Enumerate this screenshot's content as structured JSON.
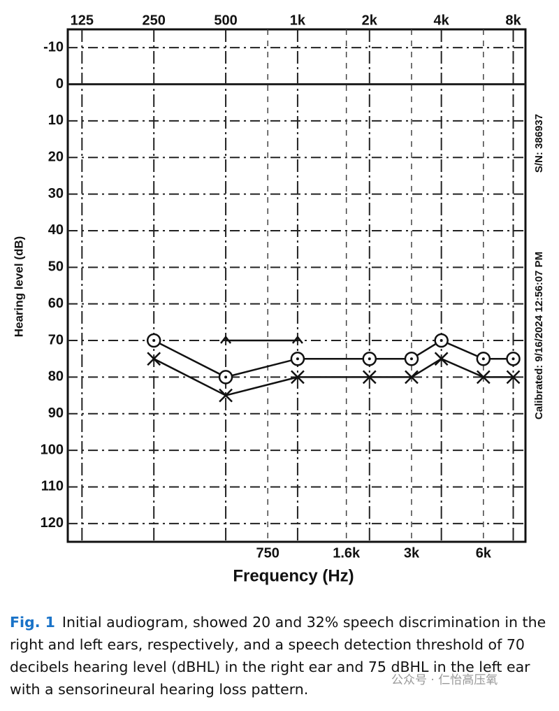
{
  "chart_data": {
    "type": "audiogram",
    "ylabel": "Hearing level (dB)",
    "xlabel": "Frequency (Hz)",
    "side_texts": [
      "S/N: 386937",
      "Calibrated: 9/16/2024 12:56:07 PM"
    ],
    "log_x": true,
    "y_inverted": true,
    "grid": true,
    "xlim": [
      109,
      9000
    ],
    "xticks_top": [
      125,
      250,
      500,
      {
        "value": 1000,
        "label": "1k"
      },
      {
        "value": 2000,
        "label": "2k"
      },
      {
        "value": 4000,
        "label": "4k"
      },
      {
        "value": 8000,
        "label": "8k"
      }
    ],
    "xticks_bottom": [
      750,
      {
        "value": 1600,
        "label": "1.6k"
      },
      {
        "value": 3000,
        "label": "3k"
      },
      {
        "value": 6000,
        "label": "6k"
      }
    ],
    "ylim": [
      -15,
      125
    ],
    "yticks": [
      -10,
      0,
      10,
      20,
      30,
      40,
      50,
      60,
      70,
      80,
      90,
      100,
      110,
      120
    ],
    "x": [
      250,
      500,
      1000,
      2000,
      3000,
      4000,
      6000,
      8000
    ],
    "series": [
      {
        "marker": "circle",
        "color": "#111111",
        "line": true,
        "values": [
          70,
          80,
          75,
          75,
          75,
          70,
          75,
          75
        ]
      },
      {
        "marker": "x",
        "color": "#111111",
        "line": true,
        "values": [
          75,
          85,
          80,
          80,
          80,
          75,
          80,
          80
        ]
      },
      {
        "marker": "caret",
        "color": "#111111",
        "line": true,
        "values": [
          null,
          70,
          70,
          null,
          null,
          null,
          null,
          null
        ]
      }
    ]
  },
  "caption": {
    "label": "Fig. 1",
    "text": "Initial audiogram, showed 20 and 32% speech discrimination in the right and left ears, respectively, and a speech detection threshold of 70 decibels hearing level (dBHL) in the right ear and 75 dBHL in the left ear with a sensorineural hearing loss pattern."
  },
  "watermark": "公众号 · 仁怡高压氧"
}
